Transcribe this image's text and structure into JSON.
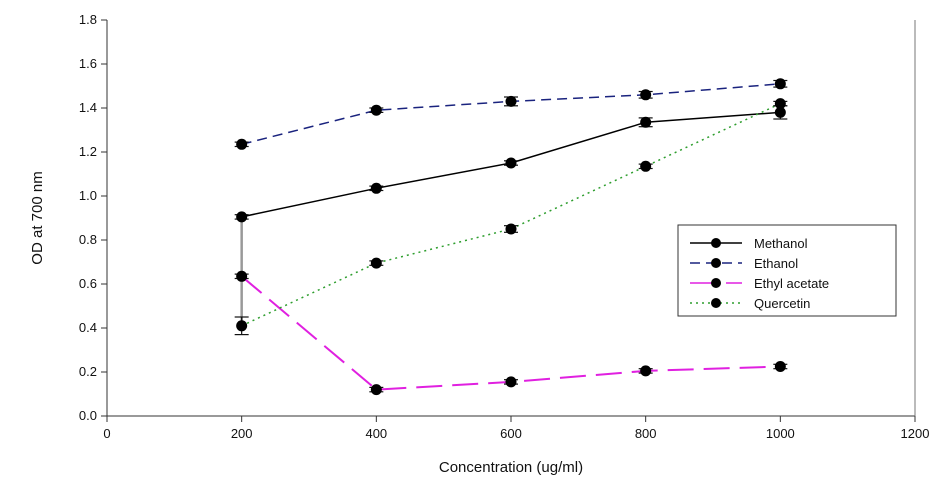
{
  "chart_data": {
    "type": "line",
    "title": "",
    "xlabel": "Concentration (ug/ml)",
    "ylabel": "OD at 700 nm",
    "xlim": [
      0,
      1200
    ],
    "ylim": [
      0.0,
      1.8
    ],
    "x_ticks": [
      "0",
      "200",
      "400",
      "600",
      "800",
      "1000",
      "1200"
    ],
    "y_ticks": [
      "0.0",
      "0.2",
      "0.4",
      "0.6",
      "0.8",
      "1.0",
      "1.2",
      "1.4",
      "1.6",
      "1.8"
    ],
    "grid": false,
    "legend_position": "right",
    "x": [
      200,
      400,
      600,
      800,
      1000
    ],
    "series": [
      {
        "name": "Methanol",
        "values": [
          0.905,
          1.035,
          1.15,
          1.335,
          1.38
        ],
        "errors": [
          0.01,
          0.01,
          0.01,
          0.02,
          0.03
        ],
        "color": "#000000",
        "dash": "solid"
      },
      {
        "name": "Ethanol",
        "values": [
          1.235,
          1.39,
          1.43,
          1.46,
          1.51
        ],
        "errors": [
          0.01,
          0.01,
          0.02,
          0.015,
          0.015
        ],
        "color": "#1a237e",
        "dash": "dashed"
      },
      {
        "name": "Ethyl acetate",
        "values": [
          0.635,
          0.12,
          0.155,
          0.205,
          0.225
        ],
        "errors": [
          0.01,
          0.01,
          0.01,
          0.01,
          0.01
        ],
        "color": "#e020e0",
        "dash": "longdash"
      },
      {
        "name": "Quercetin",
        "values": [
          0.41,
          0.695,
          0.85,
          1.135,
          1.42
        ],
        "errors": [
          0.04,
          0.01,
          0.015,
          0.01,
          0.01
        ],
        "color": "#2e9e2e",
        "dash": "dotted"
      }
    ],
    "extra_line": {
      "x": 200,
      "from": 0.405,
      "to": 0.905,
      "color": "#999999"
    }
  }
}
